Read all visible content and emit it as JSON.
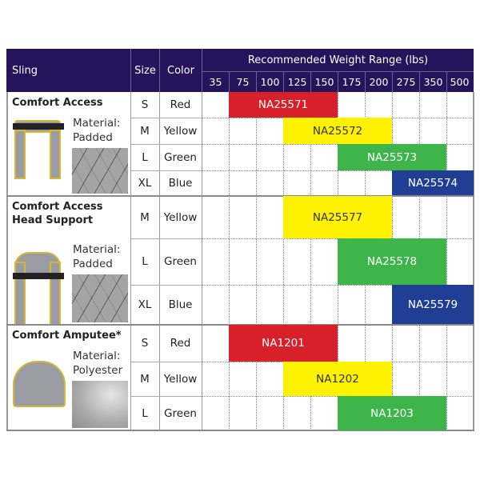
{
  "header": {
    "sling": "Sling",
    "size": "Size",
    "color": "Color",
    "weight_range": "Recommended Weight Range (lbs)",
    "weights": [
      "35",
      "75",
      "100",
      "125",
      "150",
      "175",
      "200",
      "275",
      "350",
      "500"
    ]
  },
  "colors": {
    "header": "#25145c",
    "Red": "#d7202a",
    "Yellow": "#fff200",
    "Green": "#3db54a",
    "Blue": "#213e95"
  },
  "groups": [
    {
      "name": "Comfort Access",
      "material_label": "Material:",
      "material": "Padded",
      "rows": [
        {
          "size": "S",
          "color": "Red",
          "code": "NA25571",
          "range": [
            "75",
            "150"
          ]
        },
        {
          "size": "M",
          "color": "Yellow",
          "code": "NA25572",
          "range": [
            "125",
            "200"
          ]
        },
        {
          "size": "L",
          "color": "Green",
          "code": "NA25573",
          "range": [
            "175",
            "350"
          ]
        },
        {
          "size": "XL",
          "color": "Blue",
          "code": "NA25574",
          "range": [
            "275",
            "500"
          ]
        }
      ]
    },
    {
      "name": "Comfort Access Head Support",
      "material_label": "Material:",
      "material": "Padded",
      "rows": [
        {
          "size": "M",
          "color": "Yellow",
          "code": "NA25577",
          "range": [
            "125",
            "200"
          ]
        },
        {
          "size": "L",
          "color": "Green",
          "code": "NA25578",
          "range": [
            "175",
            "350"
          ]
        },
        {
          "size": "XL",
          "color": "Blue",
          "code": "NA25579",
          "range": [
            "275",
            "500"
          ]
        }
      ]
    },
    {
      "name": "Comfort Amputee*",
      "material_label": "Material:",
      "material": "Polyester",
      "rows": [
        {
          "size": "S",
          "color": "Red",
          "code": "NA1201",
          "range": [
            "75",
            "150"
          ]
        },
        {
          "size": "M",
          "color": "Yellow",
          "code": "NA1202",
          "range": [
            "125",
            "200"
          ]
        },
        {
          "size": "L",
          "color": "Green",
          "code": "NA1203",
          "range": [
            "175",
            "350"
          ]
        }
      ]
    }
  ]
}
